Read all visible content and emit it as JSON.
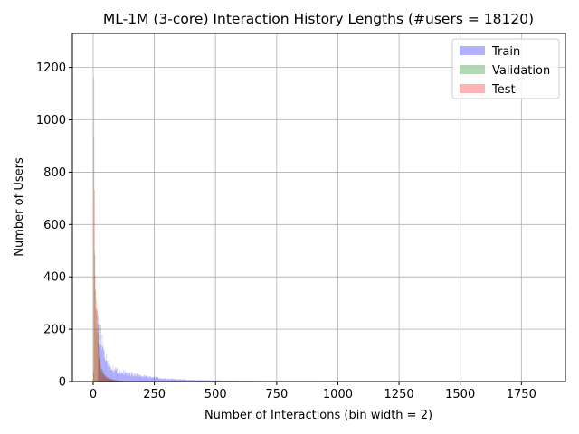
{
  "chart_data": {
    "type": "bar",
    "title": "ML-1M (3-core) Interaction History Lengths (#users = 18120)",
    "xlabel": "Number of Interactions (bin width = 2)",
    "ylabel": "Number of Users",
    "xlim": [
      -85,
      1930
    ],
    "ylim": [
      0,
      1330
    ],
    "xticks": [
      0,
      250,
      500,
      750,
      1000,
      1250,
      1500,
      1750
    ],
    "yticks": [
      0,
      200,
      400,
      600,
      800,
      1000,
      1200
    ],
    "grid": true,
    "legend_position": "top-right",
    "bin_width": 2,
    "series": [
      {
        "name": "Train",
        "color": "#0000ff",
        "alpha": 0.3,
        "points": [
          [
            20,
            220
          ],
          [
            24,
            180
          ],
          [
            28,
            175
          ],
          [
            32,
            160
          ],
          [
            36,
            140
          ],
          [
            40,
            130
          ],
          [
            44,
            110
          ],
          [
            48,
            100
          ],
          [
            52,
            88
          ],
          [
            56,
            80
          ],
          [
            60,
            70
          ],
          [
            70,
            60
          ],
          [
            80,
            52
          ],
          [
            90,
            45
          ],
          [
            100,
            40
          ],
          [
            120,
            35
          ],
          [
            140,
            30
          ],
          [
            160,
            28
          ],
          [
            180,
            24
          ],
          [
            200,
            20
          ],
          [
            250,
            15
          ],
          [
            300,
            10
          ],
          [
            350,
            8
          ],
          [
            400,
            6
          ],
          [
            500,
            4
          ],
          [
            600,
            3
          ],
          [
            700,
            2
          ],
          [
            800,
            2
          ],
          [
            1000,
            1
          ],
          [
            1250,
            1
          ],
          [
            1500,
            1
          ],
          [
            1750,
            1
          ],
          [
            1850,
            1
          ]
        ]
      },
      {
        "name": "Validation",
        "color": "#008000",
        "alpha": 0.3,
        "points": [
          [
            0,
            40
          ],
          [
            2,
            900
          ],
          [
            4,
            580
          ],
          [
            6,
            420
          ],
          [
            8,
            340
          ],
          [
            10,
            280
          ],
          [
            12,
            250
          ],
          [
            14,
            230
          ],
          [
            16,
            200
          ],
          [
            18,
            170
          ],
          [
            20,
            150
          ],
          [
            22,
            120
          ],
          [
            24,
            100
          ],
          [
            26,
            85
          ],
          [
            28,
            72
          ],
          [
            30,
            60
          ],
          [
            34,
            48
          ],
          [
            38,
            38
          ],
          [
            42,
            30
          ],
          [
            46,
            24
          ],
          [
            50,
            20
          ],
          [
            60,
            14
          ],
          [
            70,
            10
          ],
          [
            80,
            7
          ],
          [
            100,
            4
          ],
          [
            120,
            2
          ]
        ]
      },
      {
        "name": "Test",
        "color": "#ff0000",
        "alpha": 0.3,
        "points": [
          [
            0,
            60
          ],
          [
            2,
            1265
          ],
          [
            4,
            580
          ],
          [
            6,
            390
          ],
          [
            8,
            335
          ],
          [
            10,
            300
          ],
          [
            12,
            265
          ],
          [
            14,
            240
          ],
          [
            16,
            210
          ],
          [
            18,
            175
          ],
          [
            20,
            145
          ],
          [
            22,
            115
          ],
          [
            24,
            95
          ],
          [
            26,
            80
          ],
          [
            28,
            68
          ],
          [
            30,
            58
          ],
          [
            34,
            46
          ],
          [
            38,
            36
          ],
          [
            42,
            28
          ],
          [
            46,
            22
          ],
          [
            50,
            18
          ],
          [
            60,
            12
          ],
          [
            70,
            9
          ],
          [
            80,
            6
          ],
          [
            100,
            3
          ],
          [
            120,
            2
          ]
        ]
      }
    ]
  }
}
